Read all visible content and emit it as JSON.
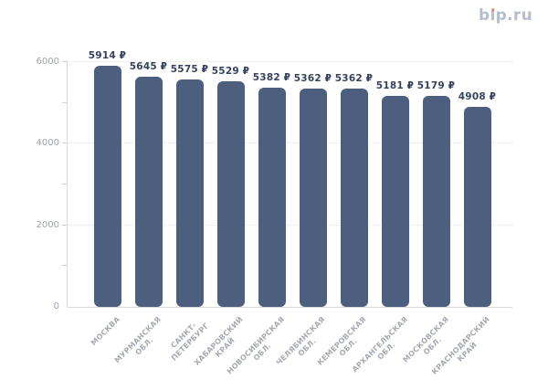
{
  "logo": {
    "full": "bip.ru",
    "part_b": "b",
    "part_i_dotless": "ı",
    "part_rest": "p.ru",
    "text_color": "#b7bdd1",
    "dot_color": "#e5876f"
  },
  "colors": {
    "bar": "#4d5f7e",
    "value_label": "#35425e",
    "axis_line": "#d9dbe1",
    "gridline": "#e0e2e8",
    "y_tick_label": "#9da1ab",
    "x_tick_label": "#a6a9b3",
    "background": "#ffffff"
  },
  "chart_data": {
    "type": "bar",
    "title": "",
    "xlabel": "",
    "ylabel": "",
    "categories": [
      "МОСКВА",
      "МУРМАНСКАЯ\nОБЛ.",
      "САНКТ-\nПЕТЕРБУРГ",
      "ХАБАРОВСКИЙ\nКРАЙ",
      "НОВОСИБИРСКАЯ\nОБЛ.",
      "ЧЕЛЯБИНСКАЯ\nОБЛ.",
      "КЕМЕРОВСКАЯ\nОБЛ.",
      "АРХАНГЕЛЬСКАЯ\nОБЛ.",
      "МОСКОВСКАЯ\nОБЛ.",
      "КРАСНОДАРСКИЙ\nКРАЙ"
    ],
    "values": [
      5914,
      5645,
      5575,
      5529,
      5382,
      5362,
      5362,
      5181,
      5179,
      4908
    ],
    "value_labels": [
      "5914 ₽",
      "5645 ₽",
      "5575 ₽",
      "5529 ₽",
      "5382 ₽",
      "5362 ₽",
      "5362 ₽",
      "5181 ₽",
      "5179 ₽",
      "4908 ₽"
    ],
    "currency": "₽",
    "ylim": [
      0,
      6000
    ],
    "yticks_labeled": [
      0,
      2000,
      4000,
      6000
    ],
    "ytick_labels": [
      "0",
      "2000",
      "4000",
      "6000"
    ],
    "yticks_minor": [
      1000,
      3000,
      5000
    ],
    "grid": "horizontal dotted at 2000/4000/6000",
    "legend": "none",
    "x_labels_rotation_deg": -45
  }
}
